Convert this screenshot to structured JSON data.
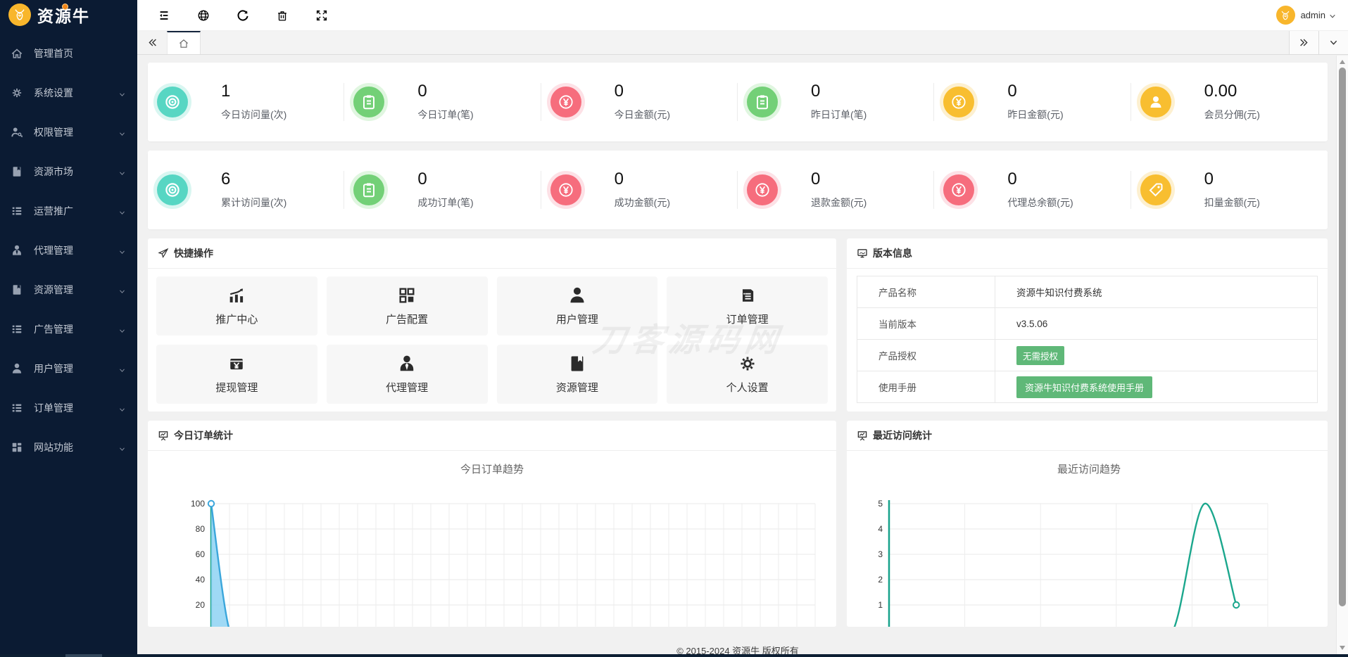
{
  "brand": {
    "name": "资源牛",
    "logo_icon": "bull-icon"
  },
  "colors": {
    "sidebar_bg": "#0b1b33",
    "logo_yellow": "#f8b62c",
    "badge_green": "#5FB878",
    "palette": {
      "teal": {
        "main": "#57d6c3",
        "halo": "#d9f6f1"
      },
      "green": {
        "main": "#73d077",
        "halo": "#e0f6e0"
      },
      "red": {
        "main": "#f66d7d",
        "halo": "#fde1e6"
      },
      "yellow": {
        "main": "#f8be30",
        "halo": "#fdf0d0"
      }
    }
  },
  "sidebar": {
    "items": [
      {
        "icon": "home-icon",
        "label": "管理首页",
        "children": false
      },
      {
        "icon": "gear-icon",
        "label": "系统设置",
        "children": true
      },
      {
        "icon": "key-icon",
        "label": "权限管理",
        "children": true
      },
      {
        "icon": "book-icon",
        "label": "资源市场",
        "children": true
      },
      {
        "icon": "list-icon",
        "label": "运营推广",
        "children": true
      },
      {
        "icon": "agent-icon",
        "label": "代理管理",
        "children": true
      },
      {
        "icon": "book-icon",
        "label": "资源管理",
        "children": true
      },
      {
        "icon": "list-icon",
        "label": "广告管理",
        "children": true
      },
      {
        "icon": "user-icon",
        "label": "用户管理",
        "children": true
      },
      {
        "icon": "list-icon",
        "label": "订单管理",
        "children": true
      },
      {
        "icon": "grid-icon",
        "label": "网站功能",
        "children": true
      }
    ]
  },
  "topbar": {
    "icons": [
      "menu-fold-icon",
      "globe-icon",
      "refresh-icon",
      "trash-icon",
      "fullscreen-icon"
    ],
    "user": {
      "name": "admin"
    }
  },
  "stats": {
    "rows": [
      [
        {
          "icon": "eye-icon",
          "color": "teal",
          "value": "1",
          "label": "今日访问量(次)"
        },
        {
          "icon": "clipboard-icon",
          "color": "green",
          "value": "0",
          "label": "今日订单(笔)"
        },
        {
          "icon": "yen-icon",
          "color": "red",
          "value": "0",
          "label": "今日金额(元)"
        },
        {
          "icon": "clipboard-icon",
          "color": "green",
          "value": "0",
          "label": "昨日订单(笔)"
        },
        {
          "icon": "yen-icon",
          "color": "yellow",
          "value": "0",
          "label": "昨日金额(元)"
        },
        {
          "icon": "member-icon",
          "color": "yellow",
          "value": "0.00",
          "label": "会员分佣(元)"
        }
      ],
      [
        {
          "icon": "eye-icon",
          "color": "teal",
          "value": "6",
          "label": "累计访问量(次)"
        },
        {
          "icon": "clipboard-icon",
          "color": "green",
          "value": "0",
          "label": "成功订单(笔)"
        },
        {
          "icon": "yen-icon",
          "color": "red",
          "value": "0",
          "label": "成功金额(元)"
        },
        {
          "icon": "yen-icon",
          "color": "red",
          "value": "0",
          "label": "退款金额(元)"
        },
        {
          "icon": "yen-icon",
          "color": "red",
          "value": "0",
          "label": "代理总余额(元)"
        },
        {
          "icon": "tag-icon",
          "color": "yellow",
          "value": "0",
          "label": "扣量金额(元)"
        }
      ]
    ]
  },
  "quick_ops": {
    "title": "快捷操作",
    "header_icon": "send-icon",
    "items": [
      {
        "icon": "chart-up-icon",
        "label": "推广中心"
      },
      {
        "icon": "layout-icon",
        "label": "广告配置"
      },
      {
        "icon": "user-icon",
        "label": "用户管理"
      },
      {
        "icon": "order-icon",
        "label": "订单管理"
      },
      {
        "icon": "cash-icon",
        "label": "提现管理"
      },
      {
        "icon": "agent-icon",
        "label": "代理管理"
      },
      {
        "icon": "book-icon",
        "label": "资源管理"
      },
      {
        "icon": "gear-icon",
        "label": "个人设置"
      }
    ]
  },
  "version_info": {
    "title": "版本信息",
    "header_icon": "monitor-icon",
    "rows": [
      {
        "label": "产品名称",
        "value": "资源牛知识付费系统",
        "type": "text"
      },
      {
        "label": "当前版本",
        "value": "v3.5.06",
        "type": "text"
      },
      {
        "label": "产品授权",
        "value": "无需授权",
        "type": "badge"
      },
      {
        "label": "使用手册",
        "value": "资源牛知识付费系统使用手册",
        "type": "badge-lg"
      }
    ]
  },
  "chart_data": [
    {
      "type": "area",
      "panel_title": "今日订单统计",
      "title": "今日订单趋势",
      "values": [
        100,
        0,
        0,
        0,
        0,
        0,
        0,
        0,
        0,
        0,
        0,
        0,
        0,
        0,
        0,
        0,
        0,
        0,
        0,
        0,
        0,
        0,
        0,
        0,
        0,
        0,
        0,
        0,
        0,
        0,
        0,
        0,
        0,
        0
      ],
      "ylim": [
        0,
        100
      ],
      "yticks": [
        100,
        80,
        60,
        40,
        20
      ],
      "marker_index": 0,
      "line_color": "#3ba6db",
      "fill_color": "#8ed2f3",
      "axis_color": "#17a28b",
      "grid": "on",
      "x_divisions": 33,
      "legend": "none"
    },
    {
      "type": "line",
      "panel_title": "最近访问统计",
      "title": "最近访问趋势",
      "values": [
        0,
        0,
        0,
        0,
        0,
        0,
        0,
        0,
        0,
        0,
        5,
        1,
        null
      ],
      "ylim": [
        0,
        5
      ],
      "yticks": [
        5,
        4,
        3,
        2,
        1
      ],
      "marker_index": 11,
      "line_color": "#1ba78d",
      "axis_color": "#17a28b",
      "grid": "on",
      "x_divisions": 5,
      "legend": "none"
    }
  ],
  "watermark": "刀客源码网",
  "footer": "© 2015-2024 资源牛 版权所有"
}
